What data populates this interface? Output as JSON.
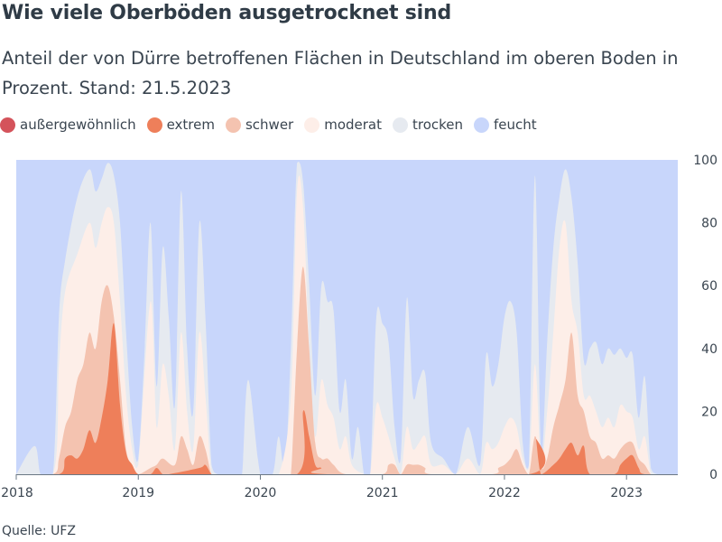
{
  "title": "Wie viele Oberböden ausgetrocknet sind",
  "subtitle": "Anteil der von Dürre betroffenen Flächen in Deutschland im oberen Boden in Prozent. Stand: 21.5.2023",
  "source": "Quelle: UFZ",
  "chart_data": {
    "type": "area",
    "stacking": "cumulative",
    "ylim": [
      0,
      100
    ],
    "yticks": [
      0,
      20,
      40,
      60,
      80,
      100
    ],
    "xlim": [
      2018.0,
      2023.42
    ],
    "xticks": [
      {
        "value": 2018,
        "label": "2018"
      },
      {
        "value": 2019,
        "label": "2019"
      },
      {
        "value": 2020,
        "label": "2020"
      },
      {
        "value": 2021,
        "label": "2021"
      },
      {
        "value": 2022,
        "label": "2022"
      },
      {
        "value": 2023,
        "label": "2023"
      }
    ],
    "legend_position": "top-left",
    "grid": false,
    "series": [
      {
        "name": "feucht",
        "color": "#c8d6fb",
        "x": [
          2018.0,
          2023.42
        ],
        "values": [
          100,
          100
        ]
      },
      {
        "name": "trocken",
        "color": "#e6eaf0",
        "x": [
          2018.0,
          2018.15,
          2018.2,
          2018.3,
          2018.35,
          2018.4,
          2018.5,
          2018.6,
          2018.65,
          2018.7,
          2018.75,
          2018.8,
          2018.85,
          2018.9,
          2018.95,
          2019.0,
          2019.05,
          2019.1,
          2019.15,
          2019.2,
          2019.25,
          2019.3,
          2019.35,
          2019.4,
          2019.45,
          2019.5,
          2019.55,
          2019.6,
          2019.65,
          2019.7,
          2019.75,
          2019.8,
          2019.85,
          2019.9,
          2020.0,
          2020.1,
          2020.15,
          2020.2,
          2020.25,
          2020.3,
          2020.35,
          2020.4,
          2020.45,
          2020.5,
          2020.55,
          2020.6,
          2020.65,
          2020.7,
          2020.75,
          2020.8,
          2020.85,
          2020.9,
          2020.95,
          2021.0,
          2021.05,
          2021.1,
          2021.15,
          2021.2,
          2021.25,
          2021.3,
          2021.35,
          2021.4,
          2021.5,
          2021.6,
          2021.7,
          2021.8,
          2021.85,
          2021.9,
          2021.95,
          2022.0,
          2022.05,
          2022.1,
          2022.15,
          2022.2,
          2022.25,
          2022.3,
          2022.35,
          2022.4,
          2022.45,
          2022.5,
          2022.55,
          2022.6,
          2022.65,
          2022.7,
          2022.75,
          2022.8,
          2022.85,
          2022.9,
          2022.95,
          2023.0,
          2023.05,
          2023.1,
          2023.15,
          2023.2,
          2023.25,
          2023.3,
          2023.35,
          2023.42
        ],
        "values": [
          0,
          9,
          0,
          0,
          50,
          68,
          88,
          97,
          90,
          94,
          99,
          95,
          80,
          45,
          15,
          5,
          38,
          80,
          28,
          72,
          50,
          22,
          90,
          40,
          20,
          80,
          50,
          3,
          0,
          0,
          0,
          0,
          0,
          30,
          0,
          0,
          12,
          0,
          40,
          99,
          93,
          60,
          25,
          60,
          55,
          52,
          20,
          30,
          5,
          15,
          0,
          0,
          50,
          48,
          42,
          15,
          5,
          56,
          25,
          30,
          32,
          10,
          5,
          0,
          15,
          3,
          38,
          28,
          35,
          50,
          55,
          45,
          10,
          3,
          95,
          7,
          42,
          72,
          88,
          97,
          88,
          67,
          36,
          40,
          42,
          35,
          40,
          38,
          40,
          37,
          38,
          18,
          31,
          2,
          0,
          0,
          0,
          0
        ]
      },
      {
        "name": "moderat",
        "color": "#fdeee8",
        "x": [
          2018.0,
          2018.3,
          2018.35,
          2018.4,
          2018.5,
          2018.6,
          2018.65,
          2018.7,
          2018.75,
          2018.8,
          2018.85,
          2018.9,
          2018.95,
          2019.0,
          2019.1,
          2019.15,
          2019.2,
          2019.25,
          2019.3,
          2019.35,
          2019.4,
          2019.45,
          2019.5,
          2019.55,
          2019.6,
          2019.65,
          2019.9,
          2020.0,
          2020.15,
          2020.25,
          2020.3,
          2020.35,
          2020.4,
          2020.45,
          2020.5,
          2020.55,
          2020.6,
          2020.65,
          2020.7,
          2020.75,
          2020.85,
          2020.9,
          2020.95,
          2021.0,
          2021.05,
          2021.1,
          2021.15,
          2021.2,
          2021.25,
          2021.3,
          2021.35,
          2021.4,
          2021.5,
          2021.6,
          2021.7,
          2021.8,
          2021.85,
          2021.9,
          2021.95,
          2022.0,
          2022.05,
          2022.1,
          2022.15,
          2022.2,
          2022.25,
          2022.3,
          2022.35,
          2022.4,
          2022.45,
          2022.5,
          2022.55,
          2022.6,
          2022.65,
          2022.7,
          2022.75,
          2022.8,
          2022.85,
          2022.9,
          2022.95,
          2023.0,
          2023.05,
          2023.1,
          2023.15,
          2023.2,
          2023.25,
          2023.42
        ],
        "values": [
          0,
          0,
          35,
          58,
          70,
          80,
          72,
          80,
          85,
          80,
          55,
          25,
          8,
          3,
          55,
          15,
          35,
          25,
          8,
          45,
          20,
          8,
          45,
          25,
          0,
          0,
          0,
          0,
          0,
          25,
          90,
          85,
          40,
          12,
          30,
          22,
          18,
          8,
          12,
          3,
          0,
          0,
          22,
          18,
          12,
          5,
          0,
          15,
          8,
          10,
          12,
          3,
          3,
          0,
          5,
          0,
          10,
          8,
          10,
          15,
          18,
          15,
          5,
          2,
          35,
          4,
          20,
          45,
          72,
          80,
          55,
          45,
          25,
          25,
          20,
          15,
          18,
          15,
          22,
          20,
          18,
          8,
          12,
          0,
          0,
          0
        ]
      },
      {
        "name": "schwer",
        "color": "#f4c3b0",
        "x": [
          2018.0,
          2018.3,
          2018.35,
          2018.4,
          2018.45,
          2018.5,
          2018.55,
          2018.6,
          2018.65,
          2018.7,
          2018.75,
          2018.8,
          2018.85,
          2018.9,
          2018.95,
          2019.0,
          2019.1,
          2019.15,
          2019.2,
          2019.3,
          2019.35,
          2019.4,
          2019.45,
          2019.5,
          2019.55,
          2019.6,
          2019.65,
          2020.2,
          2020.25,
          2020.3,
          2020.35,
          2020.4,
          2020.45,
          2020.5,
          2020.55,
          2020.6,
          2020.7,
          2021.0,
          2021.05,
          2021.1,
          2021.15,
          2021.2,
          2021.25,
          2021.3,
          2021.35,
          2021.4,
          2021.9,
          2021.95,
          2022.0,
          2022.05,
          2022.1,
          2022.15,
          2022.2,
          2022.25,
          2022.3,
          2022.35,
          2022.4,
          2022.45,
          2022.5,
          2022.55,
          2022.6,
          2022.65,
          2022.7,
          2022.75,
          2022.8,
          2022.85,
          2022.9,
          2022.95,
          2023.0,
          2023.05,
          2023.1,
          2023.15,
          2023.2,
          2023.25,
          2023.42
        ],
        "values": [
          0,
          0,
          5,
          15,
          20,
          30,
          35,
          45,
          40,
          55,
          60,
          50,
          30,
          8,
          3,
          0,
          2,
          3,
          5,
          3,
          12,
          8,
          3,
          12,
          8,
          0,
          0,
          0,
          0,
          40,
          66,
          40,
          10,
          5,
          5,
          3,
          0,
          0,
          3,
          3,
          0,
          3,
          3,
          3,
          2,
          0,
          0,
          2,
          3,
          5,
          8,
          3,
          0,
          12,
          2,
          5,
          15,
          22,
          30,
          45,
          25,
          20,
          12,
          10,
          5,
          6,
          5,
          8,
          10,
          10,
          5,
          3,
          0,
          0,
          0
        ]
      },
      {
        "name": "extrem",
        "color": "#ee7f5a",
        "x": [
          2018.0,
          2018.35,
          2018.4,
          2018.45,
          2018.5,
          2018.55,
          2018.6,
          2018.65,
          2018.7,
          2018.75,
          2018.8,
          2018.85,
          2018.9,
          2018.95,
          2019.0,
          2019.1,
          2019.15,
          2019.2,
          2019.25,
          2019.5,
          2019.55,
          2019.6,
          2019.65,
          2020.3,
          2020.35,
          2020.4,
          2020.45,
          2020.5,
          2020.55,
          2022.2,
          2022.25,
          2022.3,
          2022.4,
          2022.45,
          2022.5,
          2022.55,
          2022.6,
          2022.65,
          2022.7,
          2022.9,
          2022.95,
          2023.0,
          2023.05,
          2023.1,
          2023.15,
          2023.42
        ],
        "values": [
          0,
          0,
          5,
          6,
          5,
          8,
          14,
          10,
          18,
          30,
          48,
          22,
          7,
          3,
          0,
          0,
          2,
          0,
          0,
          2,
          3,
          0,
          0,
          0,
          20,
          12,
          3,
          2,
          0,
          0,
          12,
          0,
          3,
          5,
          8,
          10,
          6,
          9,
          0,
          0,
          3,
          5,
          6,
          2,
          0,
          0
        ]
      },
      {
        "name": "außergewöhnlich",
        "color": "#d4535b",
        "x": [
          2018.0,
          2023.42
        ],
        "values": [
          0,
          0
        ]
      }
    ]
  }
}
